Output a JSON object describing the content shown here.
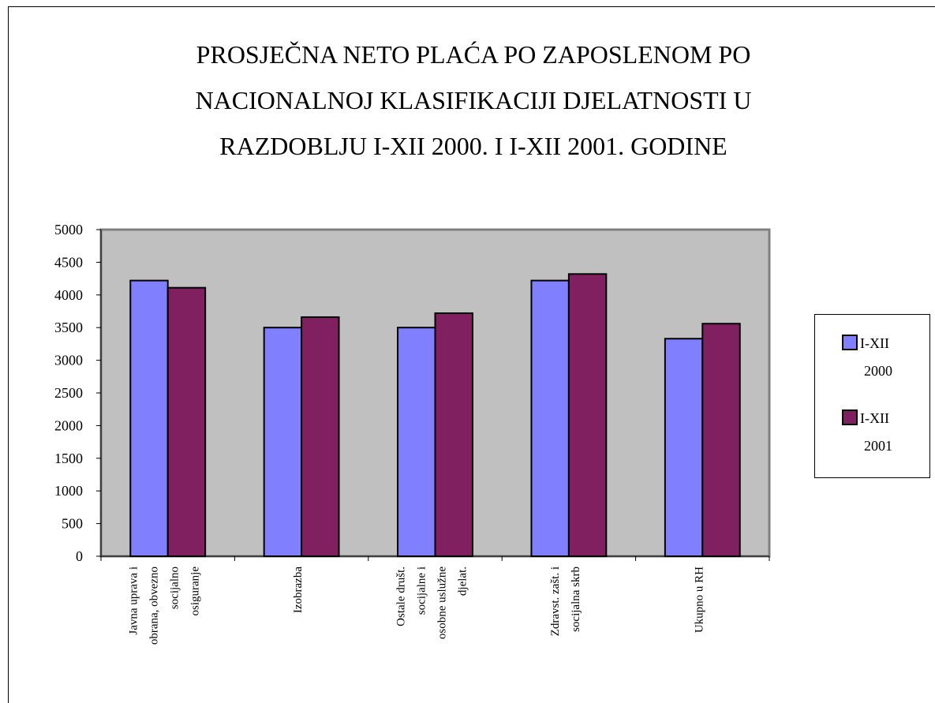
{
  "chart_data": {
    "type": "bar",
    "title": [
      "PROSJEČNA  NETO PLAĆA PO ZAPOSLENOM PO",
      "NACIONALNOJ KLASIFIKACIJI  DJELATNOSTI U",
      "RAZDOBLJU I-XII 2000. I I-XII 2001. GODINE"
    ],
    "categories": [
      "Javna uprava i\nobrana, obvezno\nsocijalno\nosiguranje",
      "Izobrazba",
      "Ostale društ.\nsocijalne i\nosobne uslužne\ndjelat.",
      "Zdravst. zašt. i\nsocijalna skrb",
      "Ukupno u RH"
    ],
    "series": [
      {
        "name": "I-XII\n2000",
        "color": "#8080ff",
        "values": [
          4220,
          3500,
          3500,
          4220,
          3330
        ]
      },
      {
        "name": "I-XII\n2001",
        "color": "#802060",
        "values": [
          4110,
          3660,
          3720,
          4320,
          3560
        ]
      }
    ],
    "ylim": [
      0,
      5000
    ],
    "yticks": [
      0,
      500,
      1000,
      1500,
      2000,
      2500,
      3000,
      3500,
      4000,
      4500,
      5000
    ],
    "legend": "right",
    "plot_background": "#c0c0c0"
  }
}
